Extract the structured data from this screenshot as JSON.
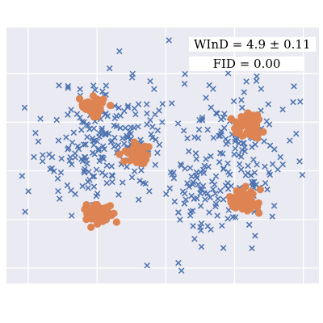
{
  "chart_data": {
    "type": "scatter",
    "title": "",
    "xlabel": "",
    "ylabel": "",
    "xlim": [
      0,
      1
    ],
    "ylim": [
      0,
      1
    ],
    "grid": true,
    "axis_ticks_visible": false,
    "annotations": [
      {
        "id": "wind",
        "text": "WInD = 4.9 ± 0.11",
        "placement": "top-right"
      },
      {
        "id": "fid",
        "text": "FID   = 0.00",
        "placement": "top-right"
      }
    ],
    "series": [
      {
        "marker": "x",
        "color": "#4C72B0",
        "groups": [
          {
            "center": [
              0.34,
              0.58
            ],
            "spread": [
              0.1,
              0.12
            ],
            "count": 160,
            "seed": 11
          },
          {
            "center": [
              0.28,
              0.48
            ],
            "spread": [
              0.09,
              0.09
            ],
            "count": 60,
            "seed": 19
          },
          {
            "center": [
              0.72,
              0.5
            ],
            "spread": [
              0.09,
              0.14
            ],
            "count": 150,
            "seed": 23
          },
          {
            "center": [
              0.62,
              0.32
            ],
            "spread": [
              0.07,
              0.07
            ],
            "count": 50,
            "seed": 29
          }
        ],
        "points": [
          [
            0.52,
            0.95
          ],
          [
            0.33,
            0.84
          ],
          [
            0.46,
            0.79
          ],
          [
            0.57,
            0.78
          ],
          [
            0.94,
            0.71
          ],
          [
            0.92,
            0.77
          ],
          [
            0.06,
            0.28
          ],
          [
            0.45,
            0.07
          ],
          [
            0.56,
            0.05
          ],
          [
            0.55,
            0.08
          ],
          [
            0.62,
            0.22
          ],
          [
            0.05,
            0.42
          ],
          [
            0.07,
            0.36
          ]
        ]
      },
      {
        "marker": "o",
        "color": "#DD8452",
        "groups": [
          {
            "center": [
              0.28,
              0.69
            ],
            "spread": [
              0.022,
              0.018
            ],
            "count": 55,
            "seed": 3
          },
          {
            "center": [
              0.42,
              0.51
            ],
            "spread": [
              0.02,
              0.018
            ],
            "count": 55,
            "seed": 5
          },
          {
            "center": [
              0.29,
              0.27
            ],
            "spread": [
              0.02,
              0.02
            ],
            "count": 55,
            "seed": 7
          },
          {
            "center": [
              0.77,
              0.62
            ],
            "spread": [
              0.022,
              0.022
            ],
            "count": 60,
            "seed": 13
          },
          {
            "center": [
              0.76,
              0.32
            ],
            "spread": [
              0.02,
              0.022
            ],
            "count": 60,
            "seed": 17
          }
        ]
      }
    ]
  }
}
